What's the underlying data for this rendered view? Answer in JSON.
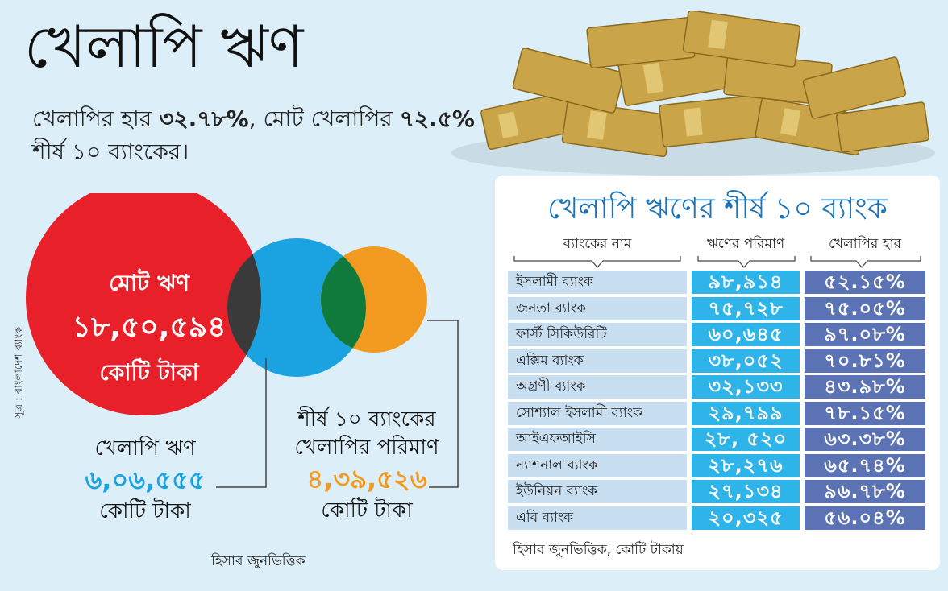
{
  "title": "খেলাপি ঋণ",
  "subtitle": {
    "part1": "খেলাপির হার ",
    "bold1": "৩২.৭৮%",
    "part2": ", মোট খেলাপির ",
    "bold2": "৭২.৫%",
    "part3": " শীর্ষ ১০ ব্যাংকের।"
  },
  "colors": {
    "red": "#e8202a",
    "blue": "#1aa3e0",
    "orange": "#f29a1f",
    "dark_overlap": "#3a3a3a",
    "green_overlap": "#0f7a3c",
    "amount_cell": "#2fb4e9",
    "rate_cell": "#5b73b5",
    "name_cell": "#c8dff2",
    "panel_title": "#1a73b8"
  },
  "venn": {
    "total": {
      "line1": "মোট ঋণ",
      "value": "১৮,৫০,৫৯৪",
      "unit": "কোটি টাকা"
    },
    "default": {
      "label": "খেলাপি ঋণ",
      "value": "৬,০৬,৫৫৫",
      "unit": "কোটি টাকা"
    },
    "top10": {
      "line1": "শীর্ষ ১০ ব্যাংকের",
      "line2": "খেলাপির পরিমাণ",
      "value": "৪,৩৯,৫২৬",
      "unit": "কোটি টাকা"
    }
  },
  "source": "সূত্র : বাংলাদেশ ব্যাংক",
  "note_left": "হিসাব জুনভিত্তিক",
  "chart_data": {
    "type": "table",
    "title": "খেলাপি ঋণের শীর্ষ ১০ ব্যাংক",
    "columns": [
      "ব্যাংকের নাম",
      "ঋণের পরিমাণ",
      "খেলাপির হার"
    ],
    "rows": [
      [
        "ইসলামী ব্যাংক",
        "৯৮,৯১৪",
        "৫২.১৫%"
      ],
      [
        "জনতা ব্যাংক",
        "৭৫,৭২৮",
        "৭৫.০৫%"
      ],
      [
        "ফার্স্ট সিকিউরিটি",
        "৬০,৬৪৫",
        "৯৭.০৮%"
      ],
      [
        "এক্সিম ব্যাংক",
        "৩৮,০৫২",
        "৭০.৮১%"
      ],
      [
        "অগ্রণী ব্যাংক",
        "৩২,১৩৩",
        "৪৩.৯৮%"
      ],
      [
        "সোশ্যাল ইসলামী ব্যাংক",
        "২৯,৭৯৯",
        "৭৮.১৫%"
      ],
      [
        "আইএফআইসি",
        "২৮, ৫২০",
        "৬৩.৩৮%"
      ],
      [
        "ন্যাশনাল ব্যাংক",
        "২৮,২৭৬",
        "৬৫.৭৪%"
      ],
      [
        "ইউনিয়ন ব্যাংক",
        "২৭,১৩৪",
        "৯৬.৭৮%"
      ],
      [
        "এবি ব্যাংক",
        "২০,৩২৫",
        "৫৬.০৪%"
      ]
    ],
    "note": "হিসাব জুনভিত্তিক, কোটি টাকায়"
  }
}
